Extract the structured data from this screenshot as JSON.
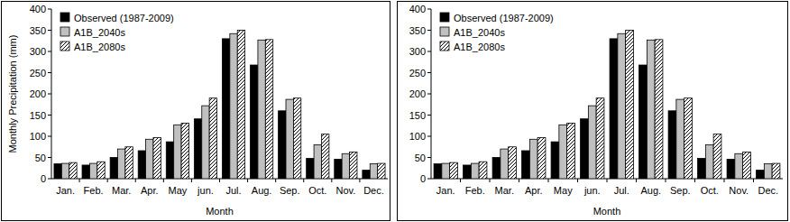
{
  "chart_data": [
    {
      "type": "bar",
      "y_label": "Monthly Precipitation (mm)",
      "x_label": "Month",
      "categories": [
        "Jan.",
        "Feb.",
        "Mar.",
        "Apr.",
        "May",
        "jun.",
        "Jul.",
        "Aug.",
        "Sep.",
        "Oct.",
        "Nov.",
        "Dec."
      ],
      "series": [
        {
          "name": "Observed (1987-2009)",
          "color": "#000000",
          "values": [
            35,
            32,
            50,
            66,
            87,
            141,
            330,
            268,
            160,
            48,
            46,
            20
          ]
        },
        {
          "name": "A1B_2040s",
          "color": "#c0c0c0",
          "values": [
            36,
            36,
            70,
            93,
            127,
            172,
            342,
            327,
            187,
            80,
            59,
            35
          ]
        },
        {
          "name": "A1B_2080s",
          "color": "#ffffff",
          "values": [
            38,
            40,
            75,
            97,
            131,
            190,
            350,
            328,
            190,
            105,
            63,
            36
          ]
        }
      ],
      "ylim": [
        0,
        400
      ],
      "yticks": [
        0,
        50,
        100,
        150,
        200,
        250,
        300,
        350,
        400
      ],
      "legend": "upper-left"
    },
    {
      "type": "bar",
      "x_label": "Month",
      "categories": [
        "Jan.",
        "Feb.",
        "Mar.",
        "Apr.",
        "May",
        "jun.",
        "Jul.",
        "Aug.",
        "Sep.",
        "Oct.",
        "Nov.",
        "Dec."
      ],
      "series": [
        {
          "name": "Observed (1987-2009)",
          "color": "#000000",
          "values": [
            35,
            32,
            50,
            66,
            87,
            141,
            330,
            268,
            160,
            48,
            46,
            20
          ]
        },
        {
          "name": "A1B_2040s",
          "color": "#c0c0c0",
          "values": [
            36,
            36,
            70,
            93,
            127,
            172,
            342,
            327,
            187,
            80,
            59,
            35
          ]
        },
        {
          "name": "A1B_2080s",
          "color": "#ffffff",
          "values": [
            38,
            40,
            75,
            97,
            131,
            190,
            350,
            328,
            190,
            105,
            63,
            36
          ]
        }
      ],
      "ylim": [
        0,
        400
      ],
      "yticks": [
        0,
        50,
        100,
        150,
        200,
        250,
        300,
        350,
        400
      ],
      "legend": "upper-left"
    }
  ]
}
